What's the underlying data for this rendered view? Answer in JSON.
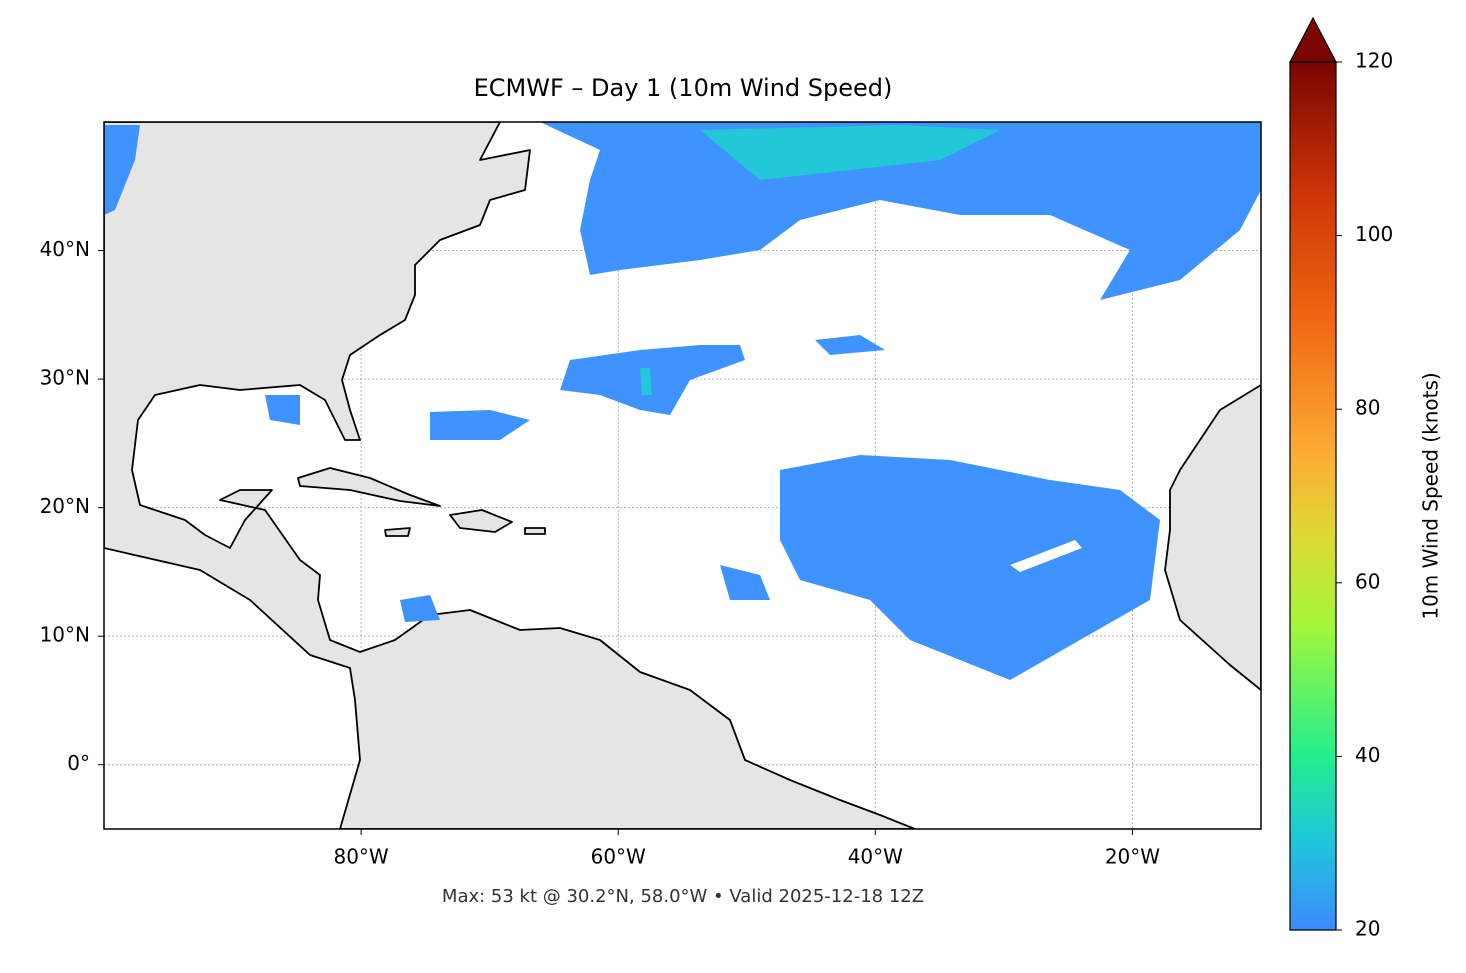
{
  "title": "ECMWF – Day 1 (10m Wind Speed)",
  "footer": "Max: 53 kt @ 30.2°N, 58.0°W • Valid 2025-12-18 12Z",
  "map": {
    "lonlim": [
      -100,
      -10
    ],
    "latlim": [
      -5,
      50
    ],
    "lon_ticks": [
      {
        "value": -80,
        "label": "80°W"
      },
      {
        "value": -60,
        "label": "60°W"
      },
      {
        "value": -40,
        "label": "40°W"
      },
      {
        "value": -20,
        "label": "20°W"
      }
    ],
    "lat_ticks": [
      {
        "value": 0,
        "label": "0°"
      },
      {
        "value": 10,
        "label": "10°N"
      },
      {
        "value": 20,
        "label": "20°N"
      },
      {
        "value": 30,
        "label": "30°N"
      },
      {
        "value": 40,
        "label": "40°N"
      }
    ]
  },
  "colorbar": {
    "label": "10m Wind Speed (knots)",
    "lim": [
      20,
      120
    ],
    "ticks": [
      20,
      40,
      60,
      80,
      100,
      120
    ]
  }
}
